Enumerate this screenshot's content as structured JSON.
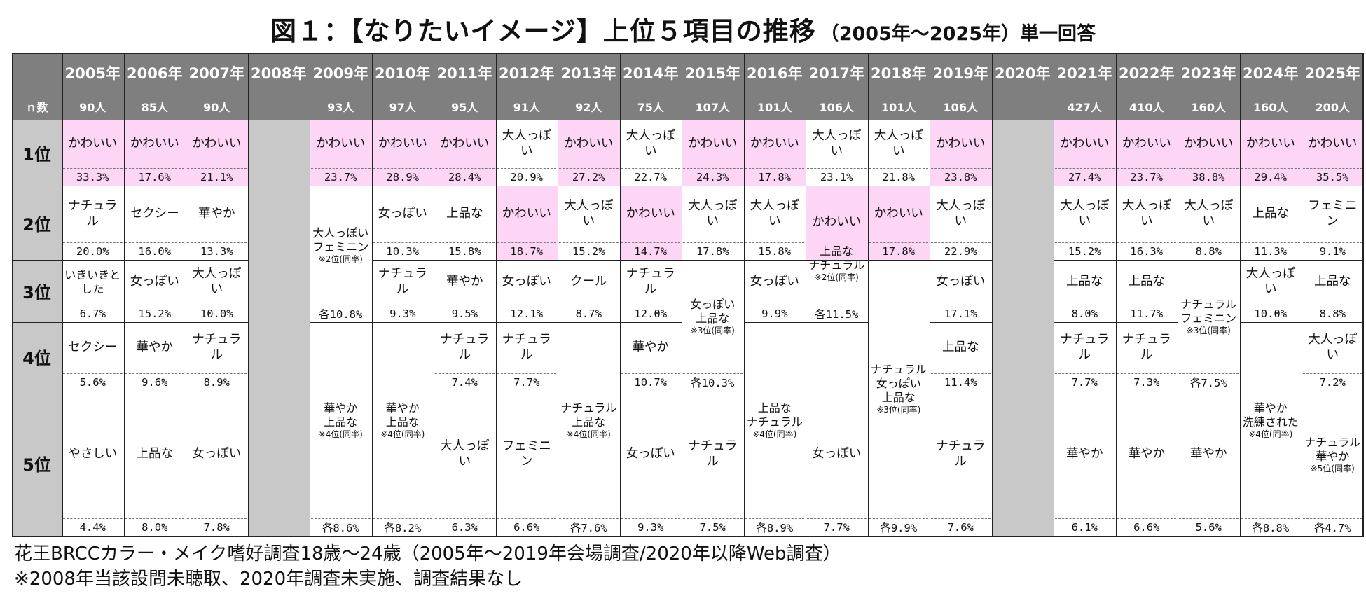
{
  "title": {
    "main": "図１：【なりたいイメージ】上位５項目の推移",
    "sub": "（2005年～2025年）単一回答"
  },
  "header": {
    "n_label": "ｎ数"
  },
  "ranks": [
    "1位",
    "2位",
    "3位",
    "4位",
    "5位"
  ],
  "years": [
    {
      "year": "2005年",
      "n": "90人",
      "entries": [
        {
          "label": "かわいい",
          "pct": "33.3%",
          "rank": 1,
          "pink": true
        },
        {
          "label": "ナチュラル",
          "pct": "20.0%",
          "rank": 2
        },
        {
          "label": "いきいきとした",
          "pct": "6.7%",
          "rank": 3
        },
        {
          "label": "セクシー",
          "pct": "5.6%",
          "rank": 4
        },
        {
          "label": "やさしい",
          "pct": "4.4%",
          "rank": 5
        }
      ]
    },
    {
      "year": "2006年",
      "n": "85人",
      "entries": [
        {
          "label": "かわいい",
          "pct": "17.6%",
          "rank": 1,
          "pink": true
        },
        {
          "label": "セクシー",
          "pct": "16.0%",
          "rank": 2
        },
        {
          "label": "女っぽい",
          "pct": "15.2%",
          "rank": 3
        },
        {
          "label": "華やか",
          "pct": "9.6%",
          "rank": 4
        },
        {
          "label": "上品な",
          "pct": "8.0%",
          "rank": 5
        }
      ]
    },
    {
      "year": "2007年",
      "n": "90人",
      "entries": [
        {
          "label": "かわいい",
          "pct": "21.1%",
          "rank": 1,
          "pink": true
        },
        {
          "label": "華やか",
          "pct": "13.3%",
          "rank": 2
        },
        {
          "label": "大人っぽい",
          "pct": "10.0%",
          "rank": 3
        },
        {
          "label": "ナチュラル",
          "pct": "8.9%",
          "rank": 4
        },
        {
          "label": "女っぽい",
          "pct": "7.8%",
          "rank": 5
        }
      ]
    },
    {
      "year": "2008年",
      "n": "",
      "empty": true,
      "entries": []
    },
    {
      "year": "2009年",
      "n": "93人",
      "entries": [
        {
          "label": "かわいい",
          "pct": "23.7%",
          "rank": 1,
          "pink": true
        },
        {
          "label": "大人っぽい\nフェミニン",
          "pct": "各10.8%",
          "rank": 2,
          "span": 2,
          "note": "※2位(同率)"
        },
        {
          "label": "華やか\n上品な",
          "pct": "各8.6%",
          "rank": 4,
          "span": 2,
          "note": "※4位(同率)"
        }
      ]
    },
    {
      "year": "2010年",
      "n": "97人",
      "entries": [
        {
          "label": "かわいい",
          "pct": "28.9%",
          "rank": 1,
          "pink": true
        },
        {
          "label": "女っぽい",
          "pct": "10.3%",
          "rank": 2
        },
        {
          "label": "ナチュラル",
          "pct": "9.3%",
          "rank": 3
        },
        {
          "label": "華やか\n上品な",
          "pct": "各8.2%",
          "rank": 4,
          "span": 2,
          "note": "※4位(同率)"
        }
      ]
    },
    {
      "year": "2011年",
      "n": "95人",
      "entries": [
        {
          "label": "かわいい",
          "pct": "28.4%",
          "rank": 1,
          "pink": true
        },
        {
          "label": "上品な",
          "pct": "15.8%",
          "rank": 2
        },
        {
          "label": "華やか",
          "pct": "9.5%",
          "rank": 3
        },
        {
          "label": "ナチュラル",
          "pct": "7.4%",
          "rank": 4
        },
        {
          "label": "大人っぽい",
          "pct": "6.3%",
          "rank": 5
        }
      ]
    },
    {
      "year": "2012年",
      "n": "91人",
      "entries": [
        {
          "label": "大人っぽい",
          "pct": "20.9%",
          "rank": 1
        },
        {
          "label": "かわいい",
          "pct": "18.7%",
          "rank": 2,
          "pink": true
        },
        {
          "label": "女っぽい",
          "pct": "12.1%",
          "rank": 3
        },
        {
          "label": "ナチュラル",
          "pct": "7.7%",
          "rank": 4
        },
        {
          "label": "フェミニン",
          "pct": "6.6%",
          "rank": 5
        }
      ]
    },
    {
      "year": "2013年",
      "n": "92人",
      "entries": [
        {
          "label": "かわいい",
          "pct": "27.2%",
          "rank": 1,
          "pink": true
        },
        {
          "label": "大人っぽい",
          "pct": "15.2%",
          "rank": 2
        },
        {
          "label": "クール",
          "pct": "8.7%",
          "rank": 3
        },
        {
          "label": "ナチュラル\n上品な",
          "pct": "各7.6%",
          "rank": 4,
          "span": 2,
          "note": "※4位(同率)"
        }
      ]
    },
    {
      "year": "2014年",
      "n": "75人",
      "entries": [
        {
          "label": "大人っぽい",
          "pct": "22.7%",
          "rank": 1
        },
        {
          "label": "かわいい",
          "pct": "14.7%",
          "rank": 2,
          "pink": true
        },
        {
          "label": "ナチュラル",
          "pct": "12.0%",
          "rank": 3
        },
        {
          "label": "華やか",
          "pct": "10.7%",
          "rank": 4
        },
        {
          "label": "女っぽい",
          "pct": "9.3%",
          "rank": 5
        }
      ]
    },
    {
      "year": "2015年",
      "n": "107人",
      "entries": [
        {
          "label": "かわいい",
          "pct": "24.3%",
          "rank": 1,
          "pink": true
        },
        {
          "label": "大人っぽい",
          "pct": "17.8%",
          "rank": 2
        },
        {
          "label": "女っぽい\n上品な",
          "pct": "各10.3%",
          "rank": 3,
          "span": 2,
          "note": "※3位(同率)"
        },
        {
          "label": "ナチュラル",
          "pct": "7.5%",
          "rank": 5
        }
      ]
    },
    {
      "year": "2016年",
      "n": "101人",
      "entries": [
        {
          "label": "かわいい",
          "pct": "17.8%",
          "rank": 1,
          "pink": true
        },
        {
          "label": "大人っぽい",
          "pct": "15.8%",
          "rank": 2
        },
        {
          "label": "女っぽい",
          "pct": "9.9%",
          "rank": 3
        },
        {
          "label": "上品な\nナチュラル",
          "pct": "各8.9%",
          "rank": 4,
          "span": 2,
          "note": "※4位(同率)"
        }
      ]
    },
    {
      "year": "2017年",
      "n": "106人",
      "entries": [
        {
          "label": "大人っぽい",
          "pct": "23.1%",
          "rank": 1
        },
        {
          "label": "かわいい",
          "pct": "",
          "rank": 2,
          "pink": true,
          "nopct": true
        },
        {
          "label": "上品な\nナチュラル",
          "pct": "各11.5%",
          "rank": 2.5,
          "span": 1.5,
          "note": "※2位(同率)"
        },
        {
          "label": "女っぽい",
          "pct": "7.7%",
          "rank": 5
        }
      ]
    },
    {
      "year": "2018年",
      "n": "101人",
      "entries": [
        {
          "label": "大人っぽい",
          "pct": "21.8%",
          "rank": 1
        },
        {
          "label": "かわいい",
          "pct": "17.8%",
          "rank": 2,
          "pink": true
        },
        {
          "label": "ナチュラル\n女っぽい\n上品な",
          "pct": "各9.9%",
          "rank": 3,
          "span": 3,
          "note": "※3位(同率)"
        }
      ]
    },
    {
      "year": "2019年",
      "n": "106人",
      "entries": [
        {
          "label": "かわいい",
          "pct": "23.8%",
          "rank": 1,
          "pink": true
        },
        {
          "label": "大人っぽい",
          "pct": "22.9%",
          "rank": 2
        },
        {
          "label": "女っぽい",
          "pct": "17.1%",
          "rank": 3
        },
        {
          "label": "上品な",
          "pct": "11.4%",
          "rank": 4
        },
        {
          "label": "ナチュラル",
          "pct": "7.6%",
          "rank": 5
        }
      ]
    },
    {
      "year": "2020年",
      "n": "",
      "empty": true,
      "entries": []
    },
    {
      "year": "2021年",
      "n": "427人",
      "entries": [
        {
          "label": "かわいい",
          "pct": "27.4%",
          "rank": 1,
          "pink": true
        },
        {
          "label": "大人っぽい",
          "pct": "15.2%",
          "rank": 2
        },
        {
          "label": "上品な",
          "pct": "8.0%",
          "rank": 3
        },
        {
          "label": "ナチュラル",
          "pct": "7.7%",
          "rank": 4
        },
        {
          "label": "華やか",
          "pct": "6.1%",
          "rank": 5
        }
      ]
    },
    {
      "year": "2022年",
      "n": "410人",
      "entries": [
        {
          "label": "かわいい",
          "pct": "23.7%",
          "rank": 1,
          "pink": true
        },
        {
          "label": "大人っぽい",
          "pct": "16.3%",
          "rank": 2
        },
        {
          "label": "上品な",
          "pct": "11.7%",
          "rank": 3
        },
        {
          "label": "ナチュラル",
          "pct": "7.3%",
          "rank": 4
        },
        {
          "label": "華やか",
          "pct": "6.6%",
          "rank": 5
        }
      ]
    },
    {
      "year": "2023年",
      "n": "160人",
      "entries": [
        {
          "label": "かわいい",
          "pct": "38.8%",
          "rank": 1,
          "pink": true
        },
        {
          "label": "大人っぽい",
          "pct": "8.8%",
          "rank": 2
        },
        {
          "label": "ナチュラル\nフェミニン",
          "pct": "各7.5%",
          "rank": 3,
          "span": 2,
          "note": "※3位(同率)"
        },
        {
          "label": "華やか",
          "pct": "5.6%",
          "rank": 5
        }
      ]
    },
    {
      "year": "2024年",
      "n": "160人",
      "entries": [
        {
          "label": "かわいい",
          "pct": "29.4%",
          "rank": 1,
          "pink": true
        },
        {
          "label": "上品な",
          "pct": "11.3%",
          "rank": 2
        },
        {
          "label": "大人っぽい",
          "pct": "10.0%",
          "rank": 3
        },
        {
          "label": "華やか\n洗練された",
          "pct": "各8.8%",
          "rank": 4,
          "span": 2,
          "note": "※4位(同率)"
        }
      ]
    },
    {
      "year": "2025年",
      "n": "200人",
      "entries": [
        {
          "label": "かわいい",
          "pct": "35.5%",
          "rank": 1,
          "pink": true
        },
        {
          "label": "フェミニン",
          "pct": "9.1%",
          "rank": 2
        },
        {
          "label": "上品な",
          "pct": "8.8%",
          "rank": 3
        },
        {
          "label": "大人っぽい",
          "pct": "7.2%",
          "rank": 4
        },
        {
          "label": "ナチュラル\n華やか",
          "pct": "各4.7%",
          "rank": 5,
          "span": 1,
          "note": "※5位(同率)"
        }
      ]
    }
  ],
  "footer": {
    "line1": "花王BRCCカラー・メイク嗜好調査18歳～24歳（2005年～2019年会場調査/2020年以降Web調査）",
    "line2": "※2008年当該設問未聴取、2020年調査未実施、調査結果なし"
  },
  "colors": {
    "header_bg": "#7f7f7f",
    "rank_bg": "#c8c8c8",
    "highlight_pink": "#fdd6f6"
  }
}
